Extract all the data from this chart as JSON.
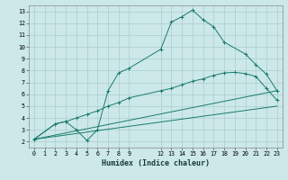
{
  "xlabel": "Humidex (Indice chaleur)",
  "xlim": [
    -0.5,
    23.5
  ],
  "ylim": [
    1.5,
    13.5
  ],
  "xticks": [
    0,
    1,
    2,
    3,
    4,
    5,
    6,
    7,
    8,
    9,
    12,
    13,
    14,
    15,
    16,
    17,
    18,
    19,
    20,
    21,
    22,
    23
  ],
  "yticks": [
    2,
    3,
    4,
    5,
    6,
    7,
    8,
    9,
    10,
    11,
    12,
    13
  ],
  "line_color": "#1a7a6e",
  "bg_color": "#cce8e8",
  "grid_color": "#aacece",
  "line1_x": [
    0,
    2,
    3,
    4,
    5,
    6,
    7,
    8,
    9,
    12,
    13,
    14,
    15,
    16,
    17,
    18,
    20,
    21,
    22,
    23
  ],
  "line1_y": [
    2.2,
    3.5,
    3.7,
    3.0,
    2.1,
    3.0,
    6.3,
    7.8,
    8.2,
    9.8,
    12.1,
    12.55,
    13.1,
    12.3,
    11.7,
    10.4,
    9.4,
    8.5,
    7.7,
    6.3
  ],
  "line2_x": [
    0,
    2,
    3,
    4,
    5,
    6,
    7,
    8,
    9,
    12,
    13,
    14,
    15,
    16,
    17,
    18,
    19,
    20,
    21,
    22,
    23
  ],
  "line2_y": [
    2.2,
    3.5,
    3.7,
    4.0,
    4.3,
    4.6,
    5.0,
    5.3,
    5.7,
    6.3,
    6.5,
    6.8,
    7.1,
    7.3,
    7.6,
    7.8,
    7.85,
    7.75,
    7.5,
    6.5,
    5.5
  ],
  "line3_x": [
    0,
    23
  ],
  "line3_y": [
    2.2,
    6.3
  ],
  "line4_x": [
    0,
    23
  ],
  "line4_y": [
    2.2,
    5.0
  ]
}
